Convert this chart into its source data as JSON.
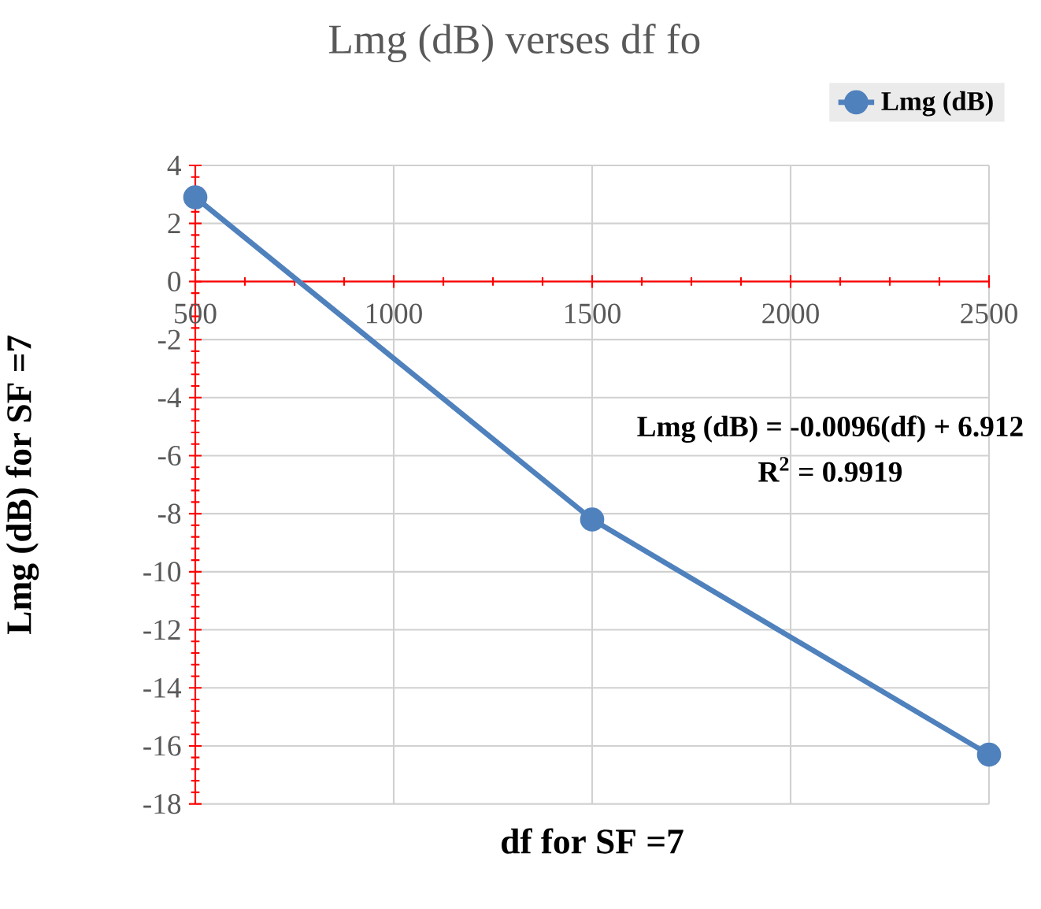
{
  "chart_data": {
    "type": "line",
    "title": "Lmg (dB) verses df fo",
    "xlabel": "df for SF =7",
    "ylabel": "Lmg (dB) for SF =7",
    "x": [
      500,
      1500,
      2500
    ],
    "series": [
      {
        "name": "Lmg (dB)",
        "color": "#4f81bd",
        "values": [
          2.9,
          -8.2,
          -16.3
        ]
      }
    ],
    "xlim": [
      500,
      2500
    ],
    "xticks": [
      500,
      1000,
      1500,
      2000,
      2500
    ],
    "ylim": [
      -18,
      4
    ],
    "yticks": [
      -18,
      -16,
      -14,
      -12,
      -10,
      -8,
      -6,
      -4,
      -2,
      0,
      2,
      4
    ],
    "grid": true,
    "legend": "top right",
    "marker": "circle",
    "line_style": "solid",
    "annotations": [
      "Lmg (dB) = -0.0096(df) + 6.912",
      "R$^{2}$ = 0.9919"
    ]
  }
}
